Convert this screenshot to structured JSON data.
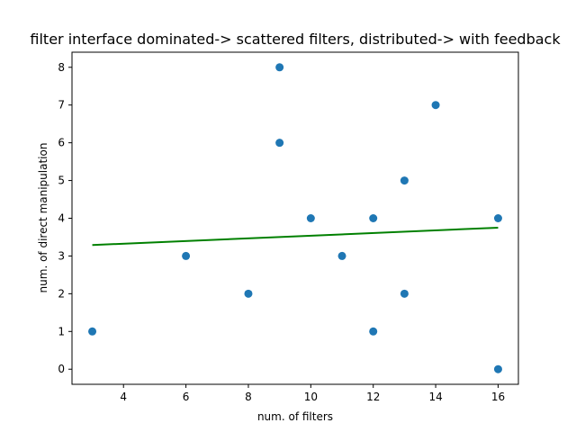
{
  "chart_data": {
    "type": "scatter",
    "title": "filter interface dominated-> scattered filters, distributed-> with feedback",
    "xlabel": "num. of filters",
    "ylabel": "num. of direct manipulation",
    "xlim": [
      2.35,
      16.65
    ],
    "ylim": [
      -0.4,
      8.4
    ],
    "xticks": [
      4,
      6,
      8,
      10,
      12,
      14,
      16
    ],
    "yticks": [
      0,
      1,
      2,
      3,
      4,
      5,
      6,
      7,
      8
    ],
    "grid": false,
    "points": [
      {
        "x": 3,
        "y": 1
      },
      {
        "x": 6,
        "y": 3
      },
      {
        "x": 8,
        "y": 2
      },
      {
        "x": 9,
        "y": 8
      },
      {
        "x": 9,
        "y": 6
      },
      {
        "x": 10,
        "y": 4
      },
      {
        "x": 11,
        "y": 3
      },
      {
        "x": 12,
        "y": 4
      },
      {
        "x": 12,
        "y": 1
      },
      {
        "x": 13,
        "y": 5
      },
      {
        "x": 13,
        "y": 2
      },
      {
        "x": 14,
        "y": 7
      },
      {
        "x": 16,
        "y": 4
      },
      {
        "x": 16,
        "y": 0
      }
    ],
    "trendline": {
      "x": [
        3,
        16
      ],
      "y": [
        3.29,
        3.75
      ]
    },
    "colors": {
      "points": "#1f77b4",
      "trendline": "#008000",
      "axes": "#000000"
    }
  }
}
